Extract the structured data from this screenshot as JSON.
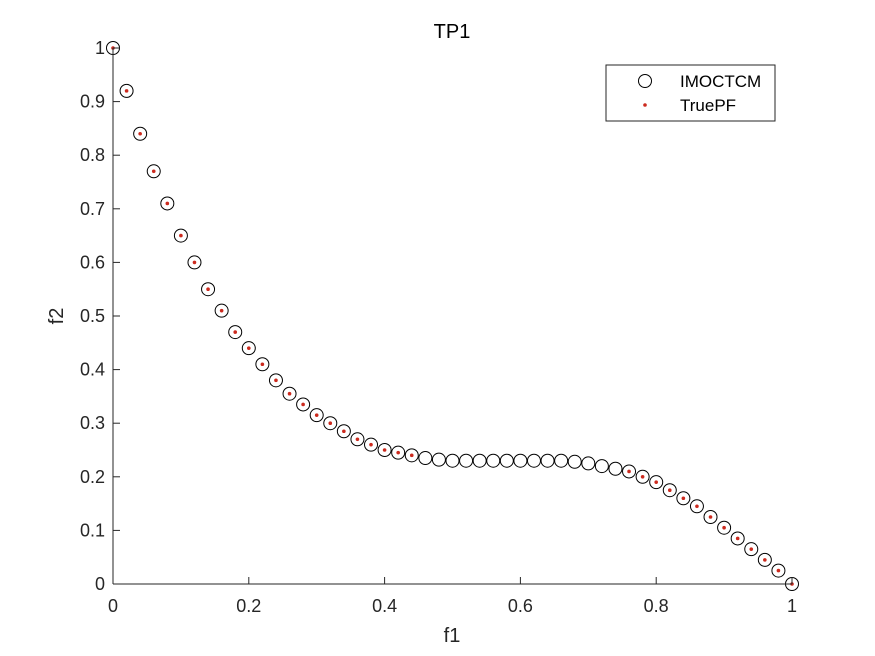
{
  "chart_data": {
    "type": "scatter",
    "title": "TP1",
    "xlabel": "f1",
    "ylabel": "f2",
    "xlim": [
      0,
      1
    ],
    "ylim": [
      0,
      1
    ],
    "xticks": [
      "0",
      "0.2",
      "0.4",
      "0.6",
      "0.8",
      "1"
    ],
    "yticks": [
      "0",
      "0.1",
      "0.2",
      "0.3",
      "0.4",
      "0.5",
      "0.6",
      "0.7",
      "0.8",
      "0.9",
      "1"
    ],
    "grid": false,
    "legend_position": "top-right",
    "series": [
      {
        "name": "IMOCTCM",
        "marker": "open-circle",
        "color": "#000000",
        "x": [
          0.0,
          0.02,
          0.04,
          0.06,
          0.08,
          0.1,
          0.12,
          0.14,
          0.16,
          0.18,
          0.2,
          0.22,
          0.24,
          0.26,
          0.28,
          0.3,
          0.32,
          0.34,
          0.36,
          0.38,
          0.4,
          0.42,
          0.44,
          0.46,
          0.48,
          0.5,
          0.52,
          0.54,
          0.56,
          0.58,
          0.6,
          0.62,
          0.64,
          0.66,
          0.68,
          0.7,
          0.72,
          0.74,
          0.76,
          0.78,
          0.8,
          0.82,
          0.84,
          0.86,
          0.88,
          0.9,
          0.92,
          0.94,
          0.96,
          0.98,
          1.0
        ],
        "y": [
          1.0,
          0.92,
          0.84,
          0.77,
          0.71,
          0.65,
          0.6,
          0.55,
          0.51,
          0.47,
          0.44,
          0.41,
          0.38,
          0.355,
          0.335,
          0.315,
          0.3,
          0.285,
          0.27,
          0.26,
          0.25,
          0.245,
          0.24,
          0.235,
          0.232,
          0.23,
          0.23,
          0.23,
          0.23,
          0.23,
          0.23,
          0.23,
          0.23,
          0.23,
          0.228,
          0.225,
          0.22,
          0.215,
          0.21,
          0.2,
          0.19,
          0.175,
          0.16,
          0.145,
          0.125,
          0.105,
          0.085,
          0.065,
          0.045,
          0.025,
          0.0
        ]
      },
      {
        "name": "TruePF",
        "marker": "dot",
        "color": "#cc2a1e",
        "x": [
          0.0,
          0.02,
          0.04,
          0.06,
          0.08,
          0.1,
          0.12,
          0.14,
          0.16,
          0.18,
          0.2,
          0.22,
          0.24,
          0.26,
          0.28,
          0.3,
          0.32,
          0.34,
          0.36,
          0.38,
          0.4,
          0.42,
          0.44,
          0.76,
          0.78,
          0.8,
          0.82,
          0.84,
          0.86,
          0.88,
          0.9,
          0.92,
          0.94,
          0.96,
          0.98,
          1.0
        ],
        "y": [
          1.0,
          0.92,
          0.84,
          0.77,
          0.71,
          0.65,
          0.6,
          0.55,
          0.51,
          0.47,
          0.44,
          0.41,
          0.38,
          0.355,
          0.335,
          0.315,
          0.3,
          0.285,
          0.27,
          0.26,
          0.25,
          0.245,
          0.24,
          0.21,
          0.2,
          0.19,
          0.175,
          0.16,
          0.145,
          0.125,
          0.105,
          0.085,
          0.065,
          0.045,
          0.025,
          0.0
        ]
      }
    ]
  }
}
